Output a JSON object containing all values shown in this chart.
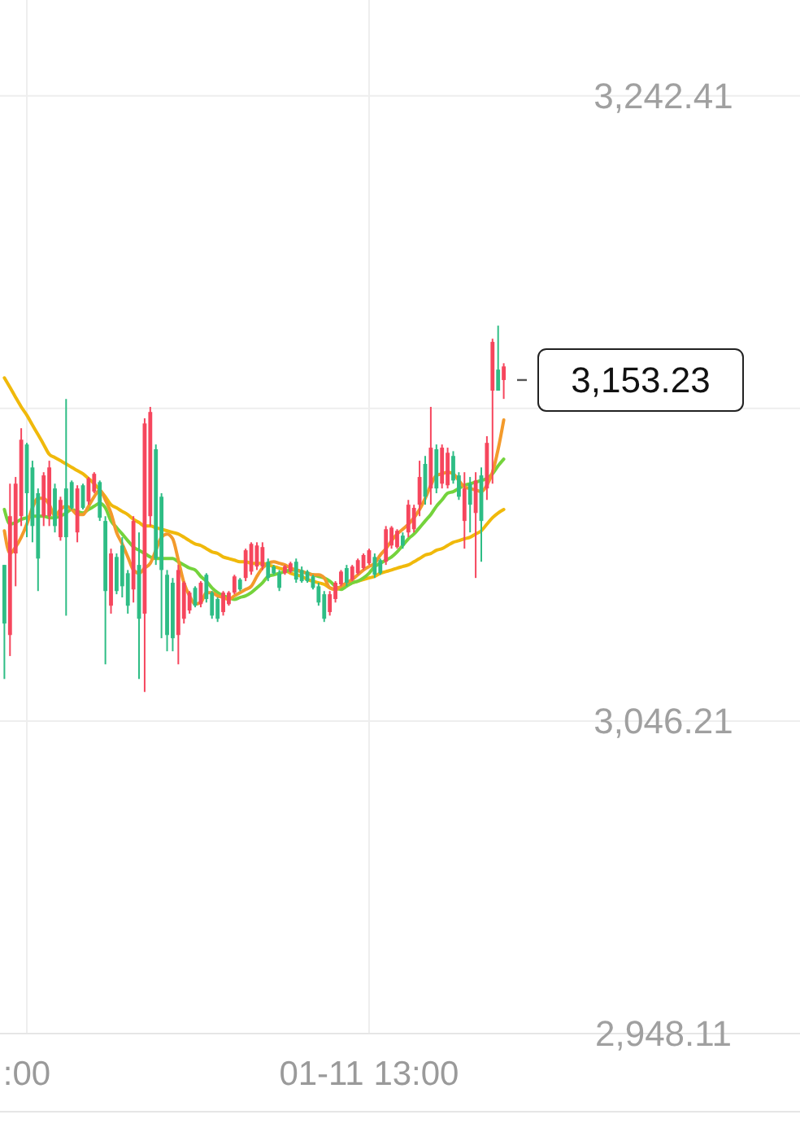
{
  "chart_data": {
    "type": "candlestick",
    "categories": [
      null,
      null,
      null,
      null,
      ":00",
      null,
      null,
      null,
      null,
      null,
      null,
      null,
      null,
      null,
      null,
      null,
      null,
      null,
      null,
      null,
      null,
      null,
      null,
      null,
      null,
      null,
      null,
      null,
      null,
      null,
      null,
      null,
      null,
      null,
      null,
      null,
      null,
      null,
      null,
      null,
      null,
      null,
      null,
      null,
      null,
      null,
      null,
      null,
      null,
      null,
      null,
      null,
      null,
      null,
      null,
      null,
      null,
      null,
      null,
      null,
      null,
      null,
      null,
      null,
      null,
      "01-11 13:00",
      null,
      null,
      null,
      null,
      null,
      null,
      null,
      null,
      null,
      null,
      null,
      null,
      null,
      null,
      null,
      null,
      null,
      null,
      null,
      null,
      null,
      null,
      null,
      null
    ],
    "ylim": [
      2948.11,
      3272.5
    ],
    "yticks": [
      {
        "value": 2948.11,
        "label": "2,948.11"
      },
      {
        "value": 3046.21,
        "label": "3,046.21"
      },
      {
        "value": 3144.31,
        "label": null
      },
      {
        "value": 3242.41,
        "label": "3,242.41"
      }
    ],
    "grid": true,
    "series": [
      {
        "ohlc": [
          [
            3076.8,
            3095.2,
            3059.4,
            3095.2
          ],
          [
            3110.5,
            3120.7,
            3066.6,
            3073.2
          ],
          [
            3120.7,
            3122.8,
            3088.5,
            3098.8
          ],
          [
            3134.5,
            3138.1,
            3107.4,
            3110.5
          ],
          [
            3117.7,
            3133.5,
            3103.9,
            3133.0
          ],
          [
            3107.4,
            3127.9,
            3102.3,
            3125.8
          ],
          [
            3097.2,
            3119.2,
            3087.0,
            3117.7
          ],
          [
            3123.3,
            3124.3,
            3107.4,
            3110.5
          ],
          [
            3125.8,
            3127.9,
            3107.4,
            3110.5
          ],
          [
            3107.4,
            3120.7,
            3105.4,
            3119.2
          ],
          [
            3115.6,
            3116.6,
            3102.8,
            3103.9
          ],
          [
            3103.9,
            3147.3,
            3079.3,
            3119.2
          ],
          [
            3113.1,
            3121.7,
            3112.6,
            3121.2
          ],
          [
            3119.2,
            3120.2,
            3102.3,
            3105.4
          ],
          [
            3113.1,
            3120.7,
            3112.6,
            3120.2
          ],
          [
            3122.3,
            3122.8,
            3114.1,
            3115.1
          ],
          [
            3123.8,
            3124.3,
            3117.7,
            3118.2
          ],
          [
            3110.0,
            3121.7,
            3109.0,
            3121.2
          ],
          [
            3087.0,
            3110.5,
            3064.0,
            3109.0
          ],
          [
            3098.8,
            3100.3,
            3079.9,
            3082.4
          ],
          [
            3087.0,
            3098.8,
            3086.0,
            3097.7
          ],
          [
            3088.5,
            3103.9,
            3085.0,
            3101.3
          ],
          [
            3082.4,
            3093.6,
            3079.9,
            3092.6
          ],
          [
            3109.0,
            3110.5,
            3083.4,
            3087.5
          ],
          [
            3078.3,
            3105.4,
            3059.4,
            3095.2
          ],
          [
            3139.6,
            3141.2,
            3055.3,
            3079.9
          ],
          [
            3143.2,
            3144.8,
            3107.4,
            3110.5
          ],
          [
            3097.2,
            3133.0,
            3095.2,
            3131.5
          ],
          [
            3093.6,
            3117.7,
            3072.2,
            3116.6
          ],
          [
            3073.2,
            3093.6,
            3068.1,
            3092.1
          ],
          [
            3072.2,
            3091.1,
            3068.1,
            3089.6
          ],
          [
            3093.6,
            3095.2,
            3064.0,
            3073.2
          ],
          [
            3089.6,
            3090.1,
            3076.8,
            3078.3
          ],
          [
            3086.5,
            3087.0,
            3079.9,
            3080.9
          ],
          [
            3082.4,
            3088.5,
            3081.9,
            3088.0
          ],
          [
            3089.6,
            3090.1,
            3081.9,
            3082.9
          ],
          [
            3084.5,
            3092.6,
            3083.4,
            3092.1
          ],
          [
            3079.3,
            3087.0,
            3078.3,
            3086.5
          ],
          [
            3078.3,
            3085.0,
            3077.3,
            3084.5
          ],
          [
            3086.5,
            3087.0,
            3079.3,
            3080.4
          ],
          [
            3086.5,
            3087.0,
            3082.4,
            3082.9
          ],
          [
            3091.6,
            3092.1,
            3086.0,
            3086.5
          ],
          [
            3087.5,
            3091.1,
            3087.0,
            3090.6
          ],
          [
            3099.8,
            3100.3,
            3090.1,
            3091.1
          ],
          [
            3101.8,
            3102.3,
            3092.1,
            3093.1
          ],
          [
            3101.3,
            3102.3,
            3093.6,
            3094.7
          ],
          [
            3100.8,
            3102.3,
            3093.6,
            3094.7
          ],
          [
            3091.1,
            3097.2,
            3090.1,
            3096.2
          ],
          [
            3092.6,
            3095.2,
            3092.1,
            3094.7
          ],
          [
            3088.0,
            3093.6,
            3087.0,
            3092.6
          ],
          [
            3094.7,
            3095.2,
            3092.1,
            3092.6
          ],
          [
            3095.7,
            3096.2,
            3092.6,
            3093.1
          ],
          [
            3090.6,
            3097.2,
            3089.6,
            3096.2
          ],
          [
            3090.1,
            3094.7,
            3089.6,
            3093.6
          ],
          [
            3090.1,
            3093.6,
            3089.6,
            3093.1
          ],
          [
            3088.0,
            3092.1,
            3087.5,
            3091.6
          ],
          [
            3083.4,
            3089.6,
            3082.4,
            3088.5
          ],
          [
            3078.3,
            3087.0,
            3077.3,
            3086.0
          ],
          [
            3086.0,
            3087.0,
            3079.3,
            3080.4
          ],
          [
            3089.6,
            3090.1,
            3083.4,
            3084.5
          ],
          [
            3093.1,
            3093.6,
            3088.5,
            3089.1
          ],
          [
            3089.6,
            3095.2,
            3088.5,
            3094.2
          ],
          [
            3094.7,
            3095.2,
            3090.1,
            3090.6
          ],
          [
            3096.7,
            3097.2,
            3092.1,
            3092.6
          ],
          [
            3098.3,
            3098.8,
            3093.6,
            3094.2
          ],
          [
            3099.8,
            3100.3,
            3095.2,
            3095.7
          ],
          [
            3092.1,
            3098.8,
            3091.1,
            3097.7
          ],
          [
            3092.6,
            3097.2,
            3092.1,
            3096.7
          ],
          [
            3106.4,
            3107.4,
            3095.2,
            3096.2
          ],
          [
            3106.9,
            3107.4,
            3100.3,
            3101.3
          ],
          [
            3105.9,
            3106.4,
            3100.3,
            3100.8
          ],
          [
            3101.3,
            3105.4,
            3100.3,
            3104.4
          ],
          [
            3114.1,
            3115.6,
            3103.9,
            3105.4
          ],
          [
            3113.1,
            3114.1,
            3105.4,
            3106.4
          ],
          [
            3122.8,
            3127.9,
            3110.5,
            3114.1
          ],
          [
            3116.6,
            3129.4,
            3114.1,
            3126.9
          ],
          [
            3132.0,
            3144.8,
            3114.1,
            3119.2
          ],
          [
            3119.2,
            3133.0,
            3117.7,
            3131.5
          ],
          [
            3132.0,
            3133.0,
            3119.2,
            3120.7
          ],
          [
            3130.4,
            3132.0,
            3119.2,
            3120.2
          ],
          [
            3121.7,
            3130.9,
            3120.7,
            3129.4
          ],
          [
            3116.6,
            3124.3,
            3115.6,
            3123.3
          ],
          [
            3119.2,
            3124.3,
            3100.3,
            3109.0
          ],
          [
            3114.1,
            3122.8,
            3105.4,
            3120.7
          ],
          [
            3121.7,
            3124.3,
            3091.1,
            3111.5
          ],
          [
            3109.0,
            3125.8,
            3096.2,
            3123.3
          ],
          [
            3133.5,
            3135.6,
            3115.6,
            3119.2
          ],
          [
            3165.2,
            3166.2,
            3120.7,
            3149.9
          ],
          [
            3149.9,
            3170.3,
            3149.9,
            3156.5
          ],
          [
            3157.5,
            3158.5,
            3147.3,
            3153.23
          ]
        ],
        "colors": [
          "#2ebd85",
          "#f6465d",
          "#f6465d",
          "#f6465d",
          "#2ebd85",
          "#2ebd85",
          "#2ebd85",
          "#f6465d",
          "#f6465d",
          "#2ebd85",
          "#f6465d",
          "#2ebd85",
          "#2ebd85",
          "#f6465d",
          "#2ebd85",
          "#f6465d",
          "#f6465d",
          "#2ebd85",
          "#2ebd85",
          "#f6465d",
          "#2ebd85",
          "#2ebd85",
          "#2ebd85",
          "#f6465d",
          "#2ebd85",
          "#f6465d",
          "#f6465d",
          "#2ebd85",
          "#2ebd85",
          "#2ebd85",
          "#2ebd85",
          "#f6465d",
          "#f6465d",
          "#f6465d",
          "#2ebd85",
          "#f6465d",
          "#2ebd85",
          "#2ebd85",
          "#2ebd85",
          "#f6465d",
          "#f6465d",
          "#f6465d",
          "#2ebd85",
          "#f6465d",
          "#f6465d",
          "#f6465d",
          "#f6465d",
          "#2ebd85",
          "#2ebd85",
          "#2ebd85",
          "#f6465d",
          "#f6465d",
          "#2ebd85",
          "#2ebd85",
          "#2ebd85",
          "#2ebd85",
          "#2ebd85",
          "#2ebd85",
          "#f6465d",
          "#f6465d",
          "#f6465d",
          "#2ebd85",
          "#f6465d",
          "#f6465d",
          "#f6465d",
          "#f6465d",
          "#2ebd85",
          "#2ebd85",
          "#f6465d",
          "#f6465d",
          "#f6465d",
          "#2ebd85",
          "#f6465d",
          "#f6465d",
          "#f6465d",
          "#2ebd85",
          "#f6465d",
          "#2ebd85",
          "#f6465d",
          "#f6465d",
          "#2ebd85",
          "#2ebd85",
          "#f6465d",
          "#2ebd85",
          "#f6465d",
          "#2ebd85",
          "#f6465d",
          "#f6465d",
          "#2ebd85",
          "#f6465d"
        ]
      },
      {
        "type": "line",
        "color": "#f0b90b",
        "values": [
          3153.9,
          3150.9,
          3147.8,
          3144.8,
          3142.2,
          3139.1,
          3136.1,
          3133.0,
          3129.9,
          3128.9,
          3127.9,
          3126.9,
          3125.8,
          3124.8,
          3123.8,
          3122.3,
          3120.7,
          3118.7,
          3116.6,
          3114.1,
          3113.1,
          3112.0,
          3111.0,
          3109.5,
          3108.5,
          3107.4,
          3107.4,
          3106.9,
          3106.4,
          3105.9,
          3105.4,
          3104.9,
          3103.9,
          3102.8,
          3101.8,
          3101.3,
          3100.3,
          3099.3,
          3098.8,
          3097.7,
          3097.2,
          3096.7,
          3096.2,
          3096.2,
          3095.7,
          3095.7,
          3095.7,
          3095.2,
          3094.7,
          3094.2,
          3093.6,
          3092.6,
          3092.1,
          3091.6,
          3090.6,
          3090.1,
          3089.6,
          3089.1,
          3088.0,
          3087.5,
          3088.0,
          3089.1,
          3089.6,
          3090.1,
          3090.6,
          3091.1,
          3091.6,
          3092.6,
          3093.1,
          3093.6,
          3094.2,
          3094.7,
          3095.2,
          3096.2,
          3097.2,
          3098.3,
          3098.8,
          3099.8,
          3100.3,
          3101.3,
          3102.3,
          3102.8,
          3103.4,
          3103.9,
          3104.9,
          3105.9,
          3108.0,
          3110.0,
          3111.5,
          3112.6
        ]
      },
      {
        "type": "line",
        "color": "#74d33c",
        "values": [
          3112.6,
          3108.0,
          3108.5,
          3109.5,
          3110.0,
          3110.5,
          3110.5,
          3110.5,
          3110.0,
          3110.0,
          3110.5,
          3111.5,
          3112.6,
          3112.0,
          3111.5,
          3112.6,
          3113.6,
          3114.6,
          3113.1,
          3109.0,
          3106.9,
          3104.9,
          3102.8,
          3100.8,
          3099.8,
          3098.8,
          3097.7,
          3097.2,
          3097.2,
          3097.2,
          3097.2,
          3096.2,
          3095.2,
          3094.2,
          3093.6,
          3091.6,
          3090.1,
          3088.0,
          3086.5,
          3085.5,
          3085.0,
          3084.4,
          3085.0,
          3085.5,
          3086.5,
          3088.0,
          3089.6,
          3091.6,
          3092.1,
          3092.6,
          3093.1,
          3093.6,
          3093.6,
          3093.1,
          3092.6,
          3092.1,
          3091.6,
          3091.1,
          3090.1,
          3088.5,
          3087.5,
          3088.5,
          3089.6,
          3090.1,
          3091.1,
          3092.6,
          3094.7,
          3095.7,
          3096.7,
          3097.7,
          3099.3,
          3101.3,
          3103.4,
          3104.9,
          3106.9,
          3109.0,
          3111.0,
          3113.6,
          3115.6,
          3117.7,
          3118.2,
          3119.2,
          3120.2,
          3120.7,
          3121.2,
          3121.7,
          3122.3,
          3123.8,
          3126.3,
          3128.4
        ]
      },
      {
        "type": "line",
        "color": "#f39a2b",
        "values": [
          3105.9,
          3098.8,
          3100.8,
          3103.9,
          3108.0,
          3113.1,
          3116.1,
          3116.1,
          3114.1,
          3110.5,
          3112.6,
          3113.6,
          3112.6,
          3111.0,
          3111.0,
          3113.6,
          3116.6,
          3118.7,
          3115.6,
          3111.5,
          3105.4,
          3101.8,
          3097.7,
          3093.6,
          3092.6,
          3094.2,
          3095.7,
          3099.8,
          3103.9,
          3104.9,
          3103.4,
          3096.7,
          3089.6,
          3085.5,
          3082.9,
          3083.4,
          3086.5,
          3086.5,
          3085.5,
          3085.0,
          3084.4,
          3085.5,
          3086.5,
          3087.5,
          3088.5,
          3091.6,
          3094.2,
          3095.7,
          3096.2,
          3095.7,
          3095.2,
          3094.2,
          3093.6,
          3093.1,
          3092.6,
          3092.1,
          3092.1,
          3091.1,
          3088.0,
          3087.5,
          3088.5,
          3089.6,
          3090.6,
          3092.1,
          3093.6,
          3094.7,
          3095.7,
          3098.3,
          3100.3,
          3102.8,
          3104.9,
          3106.4,
          3108.0,
          3110.0,
          3112.6,
          3116.1,
          3120.2,
          3123.3,
          3123.8,
          3124.3,
          3123.8,
          3121.7,
          3119.7,
          3119.2,
          3118.7,
          3118.2,
          3120.2,
          3124.3,
          3131.5,
          3140.7
        ]
      }
    ],
    "ref_lines": [
      {
        "axis": "y",
        "value": 3153.23,
        "label": "3,153.23"
      }
    ]
  }
}
